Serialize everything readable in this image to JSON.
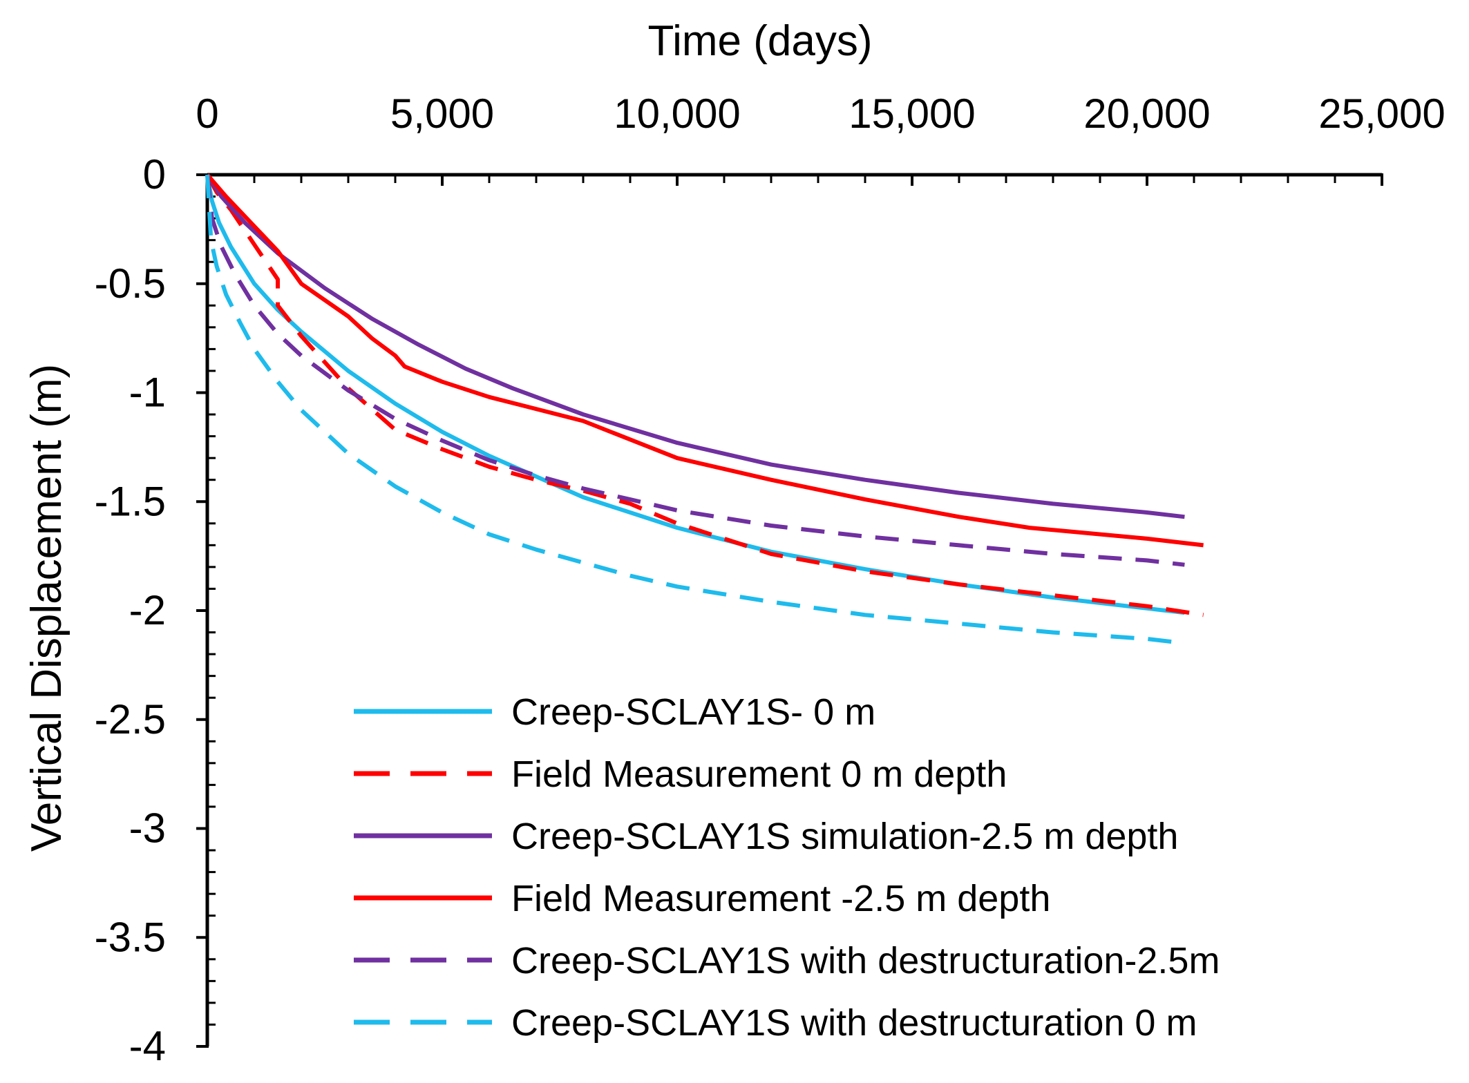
{
  "chart_data": {
    "type": "line",
    "title": "",
    "xlabel": "Time (days)",
    "ylabel": "Vertical Displacement (m)",
    "xlim": [
      0,
      25000
    ],
    "ylim": [
      -4,
      0
    ],
    "x_ticks": [
      0,
      5000,
      10000,
      15000,
      20000,
      25000
    ],
    "x_tick_labels": [
      "0",
      "5,000",
      "10,000",
      "15,000",
      "20,000",
      "25,000"
    ],
    "y_ticks": [
      0,
      -0.5,
      -1,
      -1.5,
      -2,
      -2.5,
      -3,
      -3.5,
      -4
    ],
    "y_tick_labels": [
      "0",
      "-0.5",
      "-1",
      "-1.5",
      "-2",
      "-2.5",
      "-3",
      "-3.5",
      "-4"
    ],
    "x_axis_position": "top",
    "legend_position": "bottom-center",
    "grid": false,
    "series": [
      {
        "name": "Creep-SCLAY1S- 0 m",
        "color": "#1ebbec",
        "dash": "solid",
        "x": [
          0,
          100,
          250,
          500,
          1000,
          1500,
          2000,
          3000,
          4000,
          5000,
          6000,
          8000,
          10000,
          12000,
          14000,
          16000,
          18000,
          20000,
          20800
        ],
        "y": [
          0,
          -0.12,
          -0.22,
          -0.33,
          -0.5,
          -0.62,
          -0.72,
          -0.9,
          -1.05,
          -1.18,
          -1.29,
          -1.48,
          -1.62,
          -1.73,
          -1.81,
          -1.88,
          -1.94,
          -1.99,
          -2.01
        ]
      },
      {
        "name": "Field Measurement  0 m depth",
        "color": "#ff0000",
        "dash": "dashed",
        "x": [
          0,
          200,
          500,
          1000,
          1500,
          1500,
          2000,
          3000,
          4000,
          5000,
          6000,
          7000,
          8000,
          9000,
          10000,
          12000,
          14000,
          16000,
          18000,
          20000,
          21200
        ],
        "y": [
          0,
          -0.08,
          -0.16,
          -0.32,
          -0.48,
          -0.6,
          -0.74,
          -0.98,
          -1.17,
          -1.26,
          -1.34,
          -1.4,
          -1.45,
          -1.51,
          -1.6,
          -1.74,
          -1.82,
          -1.88,
          -1.93,
          -1.98,
          -2.02
        ]
      },
      {
        "name": "Creep-SCLAY1S  simulation-2.5  m depth",
        "color": "#7030a0",
        "dash": "solid",
        "x": [
          0,
          300,
          800,
          1500,
          2500,
          3500,
          4500,
          5500,
          6500,
          8000,
          10000,
          12000,
          14000,
          16000,
          18000,
          20000,
          20800
        ],
        "y": [
          0,
          -0.1,
          -0.22,
          -0.36,
          -0.52,
          -0.66,
          -0.78,
          -0.89,
          -0.98,
          -1.1,
          -1.23,
          -1.33,
          -1.4,
          -1.46,
          -1.51,
          -1.55,
          -1.57
        ]
      },
      {
        "name": " Field Measurement  -2.5 m depth",
        "color": "#ff0000",
        "dash": "solid",
        "x": [
          0,
          400,
          1500,
          2000,
          3000,
          3500,
          4000,
          4200,
          5000,
          6000,
          8000,
          10000,
          12000,
          14000,
          16000,
          17500,
          20000,
          21200
        ],
        "y": [
          0,
          -0.1,
          -0.35,
          -0.5,
          -0.65,
          -0.75,
          -0.83,
          -0.88,
          -0.95,
          -1.02,
          -1.13,
          -1.3,
          -1.4,
          -1.49,
          -1.57,
          -1.62,
          -1.67,
          -1.7
        ]
      },
      {
        "name": "Creep-SCLAY1S  with destructuration-2.5m",
        "color": "#7030a0",
        "dash": "dashed",
        "x": [
          0,
          100,
          300,
          600,
          1000,
          1500,
          2000,
          3000,
          4000,
          5000,
          6000,
          7000,
          8000,
          9000,
          10000,
          12000,
          14000,
          16000,
          18000,
          20000,
          20800
        ],
        "y": [
          0,
          -0.2,
          -0.33,
          -0.46,
          -0.6,
          -0.73,
          -0.83,
          -0.99,
          -1.12,
          -1.22,
          -1.31,
          -1.38,
          -1.44,
          -1.49,
          -1.54,
          -1.61,
          -1.66,
          -1.7,
          -1.74,
          -1.77,
          -1.79
        ]
      },
      {
        "name": "Creep-SCLAY1S with destructuration  0 m",
        "color": "#1ebbec",
        "dash": "dashed",
        "x": [
          0,
          80,
          200,
          400,
          700,
          1000,
          1500,
          2000,
          3000,
          4000,
          5000,
          6000,
          7000,
          8000,
          9000,
          10000,
          12000,
          14000,
          16000,
          18000,
          20000,
          20800
        ],
        "y": [
          0,
          -0.3,
          -0.42,
          -0.55,
          -0.68,
          -0.8,
          -0.95,
          -1.08,
          -1.28,
          -1.43,
          -1.55,
          -1.65,
          -1.72,
          -1.78,
          -1.84,
          -1.89,
          -1.96,
          -2.02,
          -2.06,
          -2.1,
          -2.13,
          -2.15
        ]
      }
    ]
  }
}
